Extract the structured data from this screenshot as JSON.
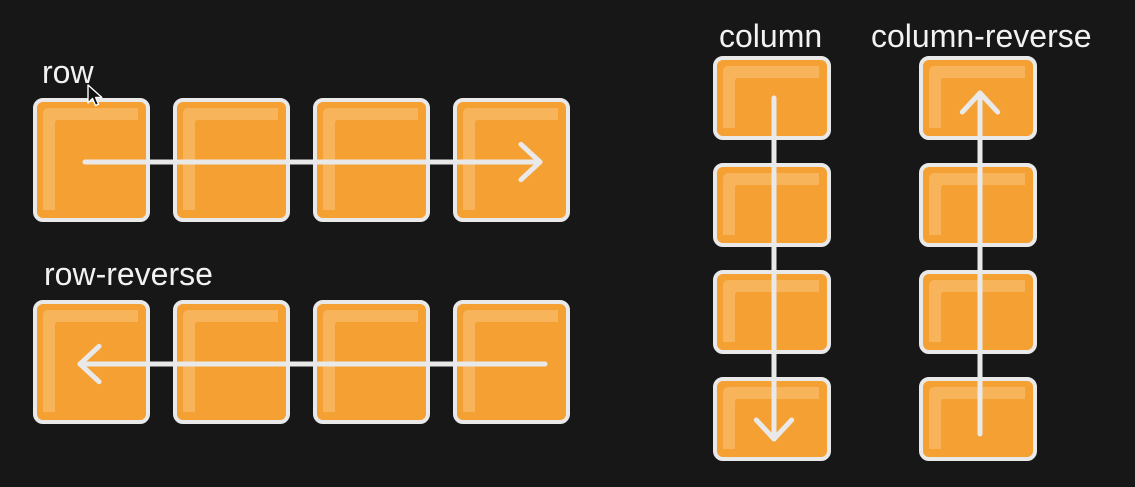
{
  "colors": {
    "background": "#171717",
    "box_fill": "#f5a033",
    "box_highlight": "#f8bb6a",
    "box_border": "#e9e9e9",
    "arrow": "#e9e9e9",
    "label_text": "#f2f2f2"
  },
  "groups": [
    {
      "id": "row",
      "label": "row",
      "direction": "horizontal",
      "arrow": "forward",
      "box_count": 4
    },
    {
      "id": "row-reverse",
      "label": "row-reverse",
      "direction": "horizontal",
      "arrow": "backward",
      "box_count": 4
    },
    {
      "id": "column",
      "label": "column",
      "direction": "vertical",
      "arrow": "forward",
      "box_count": 4
    },
    {
      "id": "column-reverse",
      "label": "column-reverse",
      "direction": "vertical",
      "arrow": "backward",
      "box_count": 4
    }
  ],
  "cursor_icon": "mouse-pointer-icon"
}
